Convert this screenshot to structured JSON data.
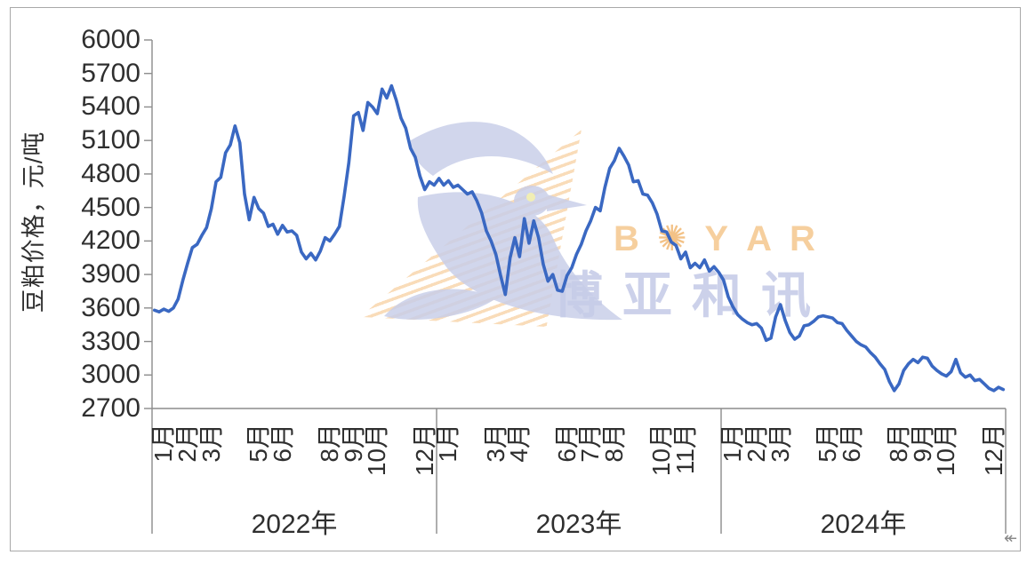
{
  "chart_data": {
    "type": "line",
    "title": "",
    "ylabel": "豆粕价格，元/吨",
    "ylim": [
      2700,
      6000
    ],
    "ytick_interval": 300,
    "yticks": [
      6000,
      5700,
      5400,
      5100,
      4800,
      4500,
      4200,
      3900,
      3600,
      3300,
      3000,
      2700
    ],
    "grid": false,
    "legend": "none",
    "x_structure": {
      "months_per_year": 12,
      "points_per_month": 5,
      "years": [
        {
          "label": "2022年",
          "months_shown": [
            "1月",
            "2月",
            "3月",
            "5月",
            "6月",
            "8月",
            "9月",
            "10月",
            "12月"
          ],
          "month_numbers": [
            1,
            2,
            3,
            5,
            6,
            8,
            9,
            10,
            12
          ]
        },
        {
          "label": "2023年",
          "months_shown": [
            "1月",
            "3月",
            "4月",
            "6月",
            "7月",
            "8月",
            "10月",
            "11月"
          ],
          "month_numbers": [
            1,
            3,
            4,
            6,
            7,
            8,
            10,
            11
          ]
        },
        {
          "label": "2024年",
          "months_shown": [
            "1月",
            "2月",
            "3月",
            "5月",
            "6月",
            "8月",
            "9月",
            "10月",
            "12月"
          ],
          "month_numbers": [
            1,
            2,
            3,
            5,
            6,
            8,
            9,
            10,
            12
          ]
        }
      ]
    },
    "series": [
      {
        "name": "豆粕价格",
        "color": "#3a68c2",
        "values": [
          3580,
          3565,
          3590,
          3570,
          3600,
          3680,
          3850,
          4000,
          4140,
          4170,
          4250,
          4320,
          4490,
          4730,
          4770,
          4990,
          5060,
          5230,
          5080,
          4620,
          4390,
          4590,
          4490,
          4450,
          4330,
          4350,
          4260,
          4340,
          4280,
          4290,
          4250,
          4100,
          4040,
          4090,
          4030,
          4110,
          4230,
          4200,
          4260,
          4330,
          4600,
          4900,
          5320,
          5350,
          5190,
          5440,
          5400,
          5340,
          5560,
          5480,
          5590,
          5460,
          5300,
          5210,
          5030,
          4950,
          4780,
          4660,
          4730,
          4700,
          4760,
          4700,
          4740,
          4680,
          4700,
          4660,
          4620,
          4640,
          4560,
          4450,
          4290,
          4200,
          4080,
          3890,
          3720,
          4050,
          4230,
          4060,
          4400,
          4180,
          4380,
          4230,
          3990,
          3840,
          3900,
          3760,
          3750,
          3890,
          3960,
          4080,
          4170,
          4290,
          4380,
          4500,
          4470,
          4680,
          4850,
          4920,
          5030,
          4960,
          4880,
          4730,
          4740,
          4620,
          4610,
          4540,
          4440,
          4290,
          4280,
          4190,
          4160,
          4040,
          4100,
          3960,
          4000,
          3960,
          4030,
          3930,
          3970,
          3920,
          3850,
          3700,
          3610,
          3540,
          3500,
          3470,
          3450,
          3460,
          3420,
          3310,
          3330,
          3520,
          3630,
          3490,
          3380,
          3320,
          3350,
          3440,
          3450,
          3480,
          3520,
          3530,
          3520,
          3510,
          3470,
          3460,
          3400,
          3350,
          3300,
          3270,
          3250,
          3200,
          3160,
          3100,
          3050,
          2940,
          2860,
          2920,
          3040,
          3100,
          3140,
          3110,
          3160,
          3150,
          3080,
          3040,
          3010,
          2990,
          3030,
          3140,
          3020,
          2980,
          3000,
          2950,
          2960,
          2920,
          2880,
          2860,
          2890,
          2870
        ]
      }
    ]
  },
  "watermark": {
    "brand": "BOYAR",
    "brand_cn": "博亚和讯",
    "brand_color": "#f6cf9e",
    "cn_color": "#c7cde8",
    "bird_color": "#c9cfe9",
    "stripe_color": "#f7cda0",
    "eye_color": "#f1eeb4"
  },
  "colors": {
    "line": "#3a68c2",
    "axis": "#8c8c8c",
    "text": "#2f2f2f",
    "frame": "#a8a8a8"
  },
  "artifact": {
    "glyph": "↞"
  }
}
